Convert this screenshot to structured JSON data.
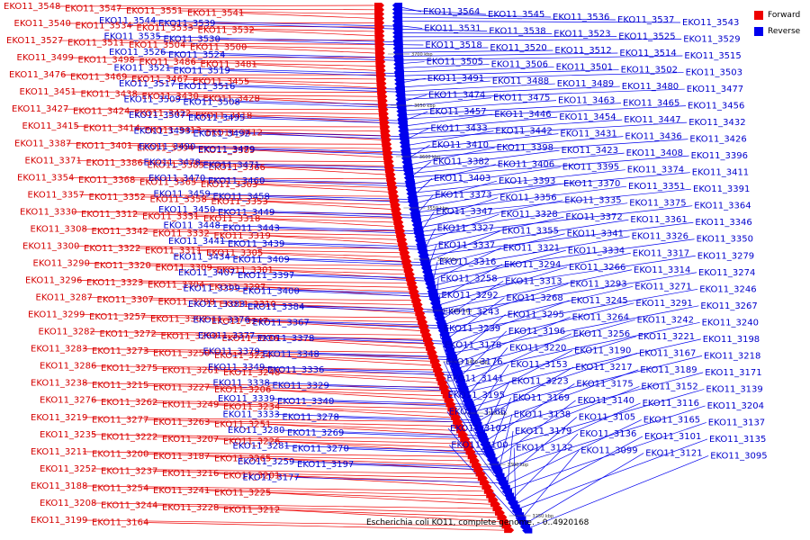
{
  "legend": {
    "forward_label": "Forward",
    "reverse_label": "Reverse",
    "forward_color": "#ee0000",
    "reverse_color": "#0000ee"
  },
  "caption": "Escherichia coli KO11, complete genome. - 0..4920168",
  "ticks": [
    "3700 kbp",
    "3650 kbp",
    "3600 kbp",
    "3550 kbp",
    "3500 kbp",
    "3450 kbp",
    "3400 kbp",
    "3350 kbp",
    "3300 kbp",
    "3250 kbp"
  ],
  "forward_labels": [
    "EKO11_3548",
    "EKO11_3547",
    "EKO11_3551",
    "EKO11_3541",
    "EKO11_3540",
    "EKO11_3534",
    "EKO11_3533",
    "EKO11_3532",
    "EKO11_3527",
    "EKO11_3511",
    "EKO11_3504",
    "EKO11_3500",
    "EKO11_3499",
    "EKO11_3498",
    "EKO11_3486",
    "EKO11_3481",
    "EKO11_3476",
    "EKO11_3469",
    "EKO11_3467",
    "EKO11_3455",
    "EKO11_3451",
    "EKO11_3438",
    "EKO11_3430",
    "EKO11_3428",
    "EKO11_3427",
    "EKO11_3424",
    "EKO11_3422",
    "EKO11_3418",
    "EKO11_3415",
    "EKO11_3414",
    "EKO11_3413",
    "EKO11_3412",
    "EKO11_3387",
    "EKO11_3401",
    "EKO11_3394",
    "EKO11_3389",
    "EKO11_3371",
    "EKO11_3386",
    "EKO11_3385",
    "EKO11_3366",
    "EKO11_3354",
    "EKO11_3368",
    "EKO11_3365",
    "EKO11_3363",
    "EKO11_3357",
    "EKO11_3352",
    "EKO11_3358",
    "EKO11_3353",
    "EKO11_3330",
    "EKO11_3312",
    "EKO11_3331",
    "EKO11_3318",
    "EKO11_3308",
    "EKO11_3342",
    "EKO11_3332",
    "EKO11_3319",
    "EKO11_3300",
    "EKO11_3322",
    "EKO11_3311",
    "EKO11_3305",
    "EKO11_3290",
    "EKO11_3320",
    "EKO11_3309",
    "EKO11_3301",
    "EKO11_3296",
    "EKO11_3323",
    "EKO11_3304",
    "EKO11_3297",
    "EKO11_3287",
    "EKO11_3307",
    "EKO11_3298",
    "EKO11_3310",
    "EKO11_3299",
    "EKO11_3257",
    "EKO11_3302",
    "EKO11_3247",
    "EKO11_3282",
    "EKO11_3272",
    "EKO11_3260",
    "EKO11_3236",
    "EKO11_3283",
    "EKO11_3273",
    "EKO11_3250",
    "EKO11_3224",
    "EKO11_3286",
    "EKO11_3275",
    "EKO11_3261",
    "EKO11_3248",
    "EKO11_3238",
    "EKO11_3215",
    "EKO11_3227",
    "EKO11_3206",
    "EKO11_3276",
    "EKO11_3262",
    "EKO11_3249",
    "EKO11_3234",
    "EKO11_3219",
    "EKO11_3277",
    "EKO11_3263",
    "EKO11_3251",
    "EKO11_3235",
    "EKO11_3222",
    "EKO11_3207",
    "EKO11_3226",
    "EKO11_3211",
    "EKO11_3200",
    "EKO11_3187",
    "EKO11_3265",
    "EKO11_3252",
    "EKO11_3237",
    "EKO11_3216",
    "EKO11_3201",
    "EKO11_3188",
    "EKO11_3254",
    "EKO11_3241",
    "EKO11_3225",
    "EKO11_3208",
    "EKO11_3244",
    "EKO11_3228",
    "EKO11_3212",
    "EKO11_3199",
    "EKO11_3164"
  ],
  "reverse_labels": [
    "EKO11_3544",
    "EKO11_3539",
    "EKO11_3535",
    "EKO11_3530",
    "EKO11_3526",
    "EKO11_3524",
    "EKO11_3521",
    "EKO11_3519",
    "EKO11_3517",
    "EKO11_3516",
    "EKO11_3509",
    "EKO11_3508",
    "EKO11_3507",
    "EKO11_3495",
    "EKO11_3493",
    "EKO11_3492",
    "EKO11_3490",
    "EKO11_3479",
    "EKO11_3478",
    "EKO11_3471",
    "EKO11_3470",
    "EKO11_3460",
    "EKO11_3459",
    "EKO11_3458",
    "EKO11_3450",
    "EKO11_3449",
    "EKO11_3448",
    "EKO11_3443",
    "EKO11_3441",
    "EKO11_3439",
    "EKO11_3434",
    "EKO11_3409",
    "EKO11_3407",
    "EKO11_3397",
    "EKO11_3399",
    "EKO11_3400",
    "EKO11_3383",
    "EKO11_3384",
    "EKO11_3376",
    "EKO11_3367",
    "EKO11_3377",
    "EKO11_3378",
    "EKO11_3379",
    "EKO11_3348",
    "EKO11_3349",
    "EKO11_3336",
    "EKO11_3338",
    "EKO11_3329",
    "EKO11_3339",
    "EKO11_3340",
    "EKO11_3333",
    "EKO11_3278",
    "EKO11_3280",
    "EKO11_3269",
    "EKO11_3281",
    "EKO11_3270",
    "EKO11_3259",
    "EKO11_3197",
    "EKO11_3177",
    "EKO11_3564",
    "EKO11_3545",
    "EKO11_3536",
    "EKO11_3537",
    "EKO11_3543",
    "EKO11_3531",
    "EKO11_3538",
    "EKO11_3523",
    "EKO11_3525",
    "EKO11_3529",
    "EKO11_3518",
    "EKO11_3520",
    "EKO11_3512",
    "EKO11_3514",
    "EKO11_3515",
    "EKO11_3505",
    "EKO11_3506",
    "EKO11_3501",
    "EKO11_3502",
    "EKO11_3503",
    "EKO11_3491",
    "EKO11_3488",
    "EKO11_3489",
    "EKO11_3480",
    "EKO11_3477",
    "EKO11_3474",
    "EKO11_3475",
    "EKO11_3463",
    "EKO11_3465",
    "EKO11_3456",
    "EKO11_3457",
    "EKO11_3446",
    "EKO11_3454",
    "EKO11_3447",
    "EKO11_3432",
    "EKO11_3433",
    "EKO11_3442",
    "EKO11_3431",
    "EKO11_3436",
    "EKO11_3426",
    "EKO11_3410",
    "EKO11_3398",
    "EKO11_3423",
    "EKO11_3408",
    "EKO11_3396",
    "EKO11_3382",
    "EKO11_3406",
    "EKO11_3395",
    "EKO11_3374",
    "EKO11_3411",
    "EKO11_3403",
    "EKO11_3393",
    "EKO11_3370",
    "EKO11_3351",
    "EKO11_3391",
    "EKO11_3373",
    "EKO11_3356",
    "EKO11_3335",
    "EKO11_3375",
    "EKO11_3364",
    "EKO11_3347",
    "EKO11_3328",
    "EKO11_3372",
    "EKO11_3361",
    "EKO11_3346",
    "EKO11_3327",
    "EKO11_3355",
    "EKO11_3341",
    "EKO11_3326",
    "EKO11_3350",
    "EKO11_3337",
    "EKO11_3321",
    "EKO11_3334",
    "EKO11_3317",
    "EKO11_3279",
    "EKO11_3316",
    "EKO11_3294",
    "EKO11_3266",
    "EKO11_3314",
    "EKO11_3274",
    "EKO11_3258",
    "EKO11_3313",
    "EKO11_3293",
    "EKO11_3271",
    "EKO11_3246",
    "EKO11_3292",
    "EKO11_3268",
    "EKO11_3245",
    "EKO11_3291",
    "EKO11_3267",
    "EKO11_3243",
    "EKO11_3295",
    "EKO11_3264",
    "EKO11_3242",
    "EKO11_3240",
    "EKO11_3239",
    "EKO11_3196",
    "EKO11_3256",
    "EKO11_3221",
    "EKO11_3198",
    "EKO11_3178",
    "EKO11_3220",
    "EKO11_3190",
    "EKO11_3167",
    "EKO11_3218",
    "EKO11_3176",
    "EKO11_3153",
    "EKO11_3217",
    "EKO11_3189",
    "EKO11_3171",
    "EKO11_3141",
    "EKO11_3223",
    "EKO11_3175",
    "EKO11_3152",
    "EKO11_3139",
    "EKO11_3195",
    "EKO11_3169",
    "EKO11_3140",
    "EKO11_3116",
    "EKO11_3204",
    "EKO11_3166",
    "EKO11_3138",
    "EKO11_3105",
    "EKO11_3165",
    "EKO11_3137",
    "EKO11_3102",
    "EKO11_3179",
    "EKO11_3136",
    "EKO11_3101",
    "EKO11_3135",
    "EKO11_3100",
    "EKO11_3132",
    "EKO11_3099",
    "EKO11_3121",
    "EKO11_3095"
  ]
}
